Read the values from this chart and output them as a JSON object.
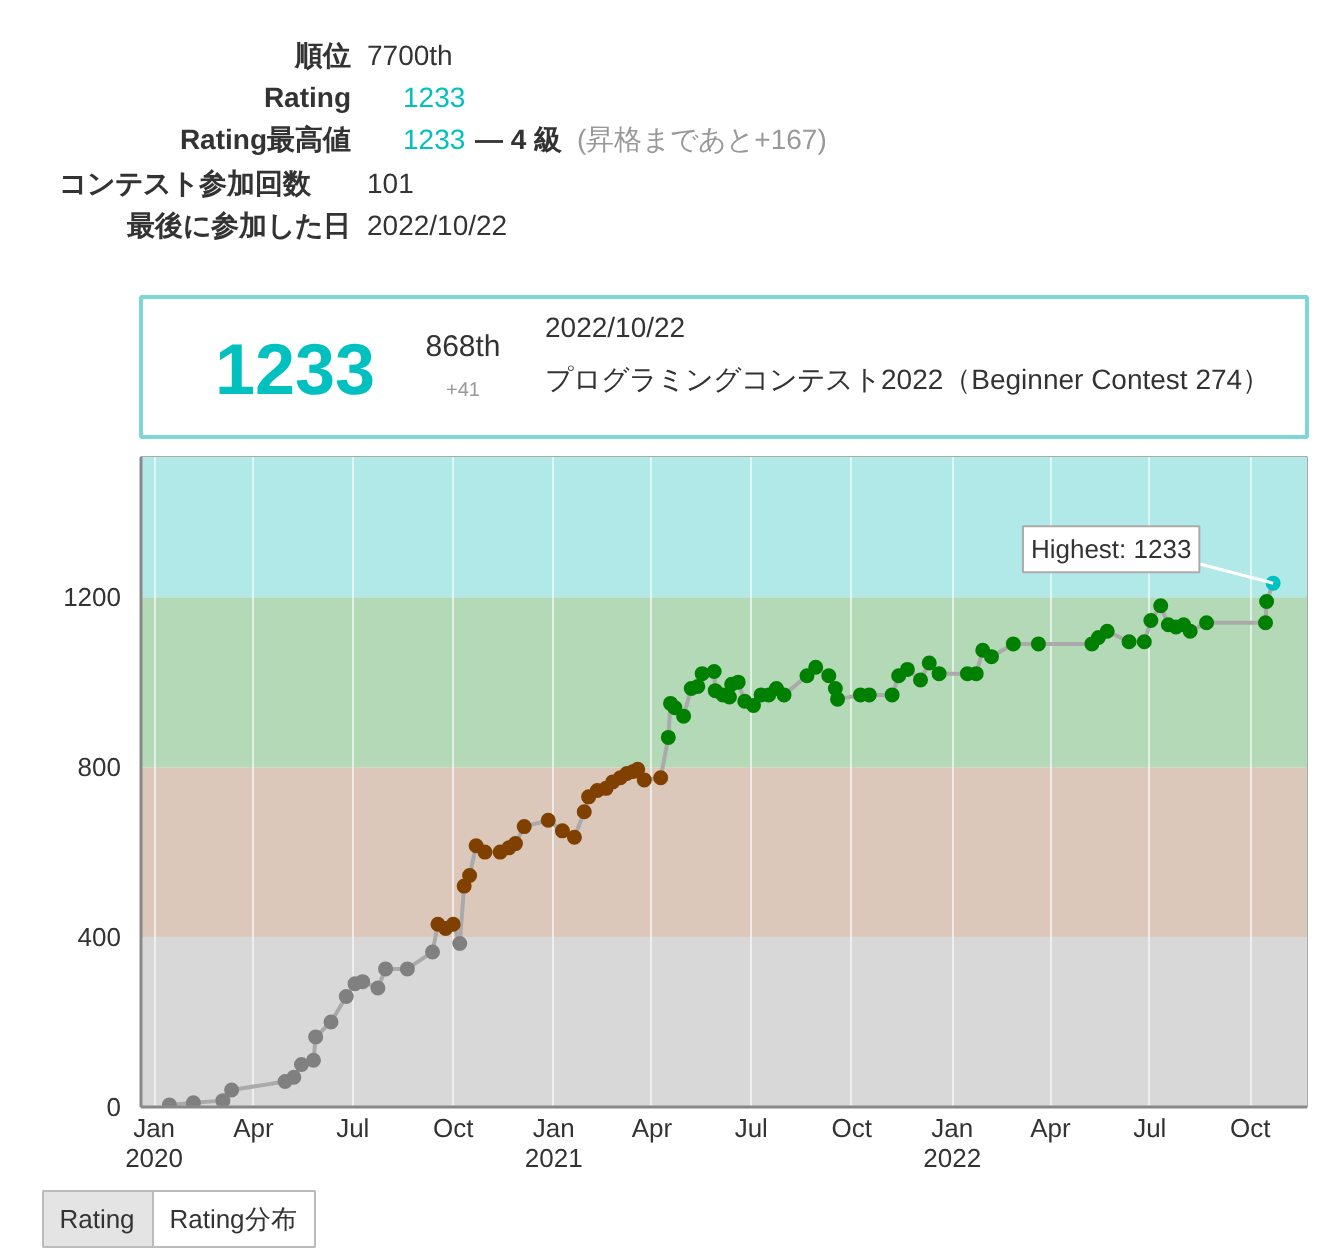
{
  "chart_data": {
    "type": "line",
    "annotations": [
      "順位",
      "7700th",
      "Rating",
      "1233",
      "Rating最高値",
      "1233",
      "— 4 級",
      "(昇格まであと+167)",
      "コンテスト参加回数",
      "101",
      "最後に参加した日",
      "2022/10/22",
      "1233",
      "868th",
      "+41",
      "2022/10/22",
      "プログラミングコンテスト2022（Beginner Contest 274）",
      "Rating",
      "Rating分布",
      {
        "text": "Highest: 1233",
        "x": "2022-10-22",
        "y": 1233
      }
    ],
    "x": [
      "2020-01-15",
      "2020-02-06",
      "2020-03-04",
      "2020-03-12",
      "2020-04-30",
      "2020-05-08",
      "2020-05-15",
      "2020-05-26",
      "2020-05-28",
      "2020-06-11",
      "2020-06-25",
      "2020-07-03",
      "2020-07-10",
      "2020-07-24",
      "2020-07-31",
      "2020-08-20",
      "2020-09-12",
      "2020-09-17",
      "2020-09-24",
      "2020-10-01",
      "2020-10-07",
      "2020-10-11",
      "2020-10-16",
      "2020-10-22",
      "2020-10-30",
      "2020-11-13",
      "2020-11-21",
      "2020-11-27",
      "2020-12-05",
      "2020-12-27",
      "2021-01-09",
      "2021-01-20",
      "2021-01-29",
      "2021-02-02",
      "2021-02-10",
      "2021-02-18",
      "2021-02-24",
      "2021-03-03",
      "2021-03-09",
      "2021-03-15",
      "2021-03-19",
      "2021-03-25",
      "2021-04-09",
      "2021-04-16",
      "2021-04-18",
      "2021-04-22",
      "2021-04-30",
      "2021-05-07",
      "2021-05-13",
      "2021-05-17",
      "2021-05-28",
      "2021-05-29",
      "2021-06-05",
      "2021-06-11",
      "2021-06-13",
      "2021-06-19",
      "2021-06-25",
      "2021-07-03",
      "2021-07-10",
      "2021-07-17",
      "2021-07-24",
      "2021-07-31",
      "2021-08-21",
      "2021-08-29",
      "2021-09-10",
      "2021-09-16",
      "2021-09-18",
      "2021-10-09",
      "2021-10-17",
      "2021-11-07",
      "2021-11-13",
      "2021-11-21",
      "2021-12-03",
      "2021-12-11",
      "2021-12-20",
      "2022-01-15",
      "2022-01-23",
      "2022-01-29",
      "2022-02-06",
      "2022-02-26",
      "2022-03-21",
      "2022-05-09",
      "2022-05-15",
      "2022-05-23",
      "2022-06-12",
      "2022-06-26",
      "2022-07-02",
      "2022-07-11",
      "2022-07-18",
      "2022-07-25",
      "2022-08-01",
      "2022-08-07",
      "2022-08-22",
      "2022-10-15",
      "2022-10-16",
      "2022-10-22"
    ],
    "series": [
      {
        "color": "#aaaaaa",
        "values": [
          5,
          10,
          15,
          40,
          60,
          70,
          100,
          110,
          165,
          200,
          260,
          290,
          295,
          280,
          325,
          325,
          365,
          430,
          420,
          430,
          385,
          520,
          545,
          615,
          600,
          600,
          610,
          620,
          660,
          675,
          650,
          635,
          695,
          730,
          745,
          750,
          765,
          775,
          785,
          790,
          795,
          770,
          775,
          870,
          950,
          940,
          920,
          985,
          990,
          1020,
          1025,
          980,
          970,
          965,
          995,
          1000,
          955,
          945,
          970,
          970,
          985,
          970,
          1015,
          1035,
          1015,
          985,
          960,
          970,
          970,
          970,
          1015,
          1030,
          1005,
          1045,
          1020,
          1020,
          1020,
          1075,
          1060,
          1090,
          1090,
          1090,
          1105,
          1120,
          1095,
          1095,
          1145,
          1180,
          1135,
          1130,
          1135,
          1120,
          1140,
          1140,
          1190,
          1233
        ],
        "colors": [
          "#808080",
          "#808080",
          "#808080",
          "#808080",
          "#808080",
          "#808080",
          "#808080",
          "#808080",
          "#808080",
          "#808080",
          "#808080",
          "#808080",
          "#808080",
          "#808080",
          "#808080",
          "#808080",
          "#808080",
          "#804000",
          "#804000",
          "#804000",
          "#808080",
          "#804000",
          "#804000",
          "#804000",
          "#804000",
          "#804000",
          "#804000",
          "#804000",
          "#804000",
          "#804000",
          "#804000",
          "#804000",
          "#804000",
          "#804000",
          "#804000",
          "#804000",
          "#804000",
          "#804000",
          "#804000",
          "#804000",
          "#804000",
          "#804000",
          "#804000",
          "#008000",
          "#008000",
          "#008000",
          "#008000",
          "#008000",
          "#008000",
          "#008000",
          "#008000",
          "#008000",
          "#008000",
          "#008000",
          "#008000",
          "#008000",
          "#008000",
          "#008000",
          "#008000",
          "#008000",
          "#008000",
          "#008000",
          "#008000",
          "#008000",
          "#008000",
          "#008000",
          "#008000",
          "#008000",
          "#008000",
          "#008000",
          "#008000",
          "#008000",
          "#008000",
          "#008000",
          "#008000",
          "#008000",
          "#008000",
          "#008000",
          "#008000",
          "#008000",
          "#008000",
          "#008000",
          "#008000",
          "#008000",
          "#008000",
          "#008000",
          "#008000",
          "#008000",
          "#008000",
          "#008000",
          "#008000",
          "#008000",
          "#008000",
          "#008000",
          "#008000",
          "#00c0c0"
        ]
      }
    ],
    "xlim": [
      "2019-12-20",
      "2022-11-22"
    ],
    "ylim": [
      0,
      1530
    ],
    "xticks": [
      {
        "value": "2020-01-01",
        "label": "Jan\n2020"
      },
      {
        "value": "2020-04-01",
        "label": "Apr"
      },
      {
        "value": "2020-07-01",
        "label": "Jul"
      },
      {
        "value": "2020-10-01",
        "label": "Oct"
      },
      {
        "value": "2021-01-01",
        "label": "Jan\n2021"
      },
      {
        "value": "2021-04-01",
        "label": "Apr"
      },
      {
        "value": "2021-07-01",
        "label": "Jul"
      },
      {
        "value": "2021-10-01",
        "label": "Oct"
      },
      {
        "value": "2022-01-01",
        "label": "Jan\n2022"
      },
      {
        "value": "2022-04-01",
        "label": "Apr"
      },
      {
        "value": "2022-07-01",
        "label": "Jul"
      },
      {
        "value": "2022-10-01",
        "label": "Oct"
      }
    ],
    "yticks": [
      0,
      400,
      800,
      1200
    ],
    "bands": [
      {
        "axis": "y",
        "from": 0,
        "to": 400,
        "color": "#d8d8d8"
      },
      {
        "axis": "y",
        "from": 400,
        "to": 800,
        "color": "#dbc8bb"
      },
      {
        "axis": "y",
        "from": 800,
        "to": 1200,
        "color": "#b4d9b7"
      },
      {
        "axis": "y",
        "from": 1200,
        "to": 1530,
        "color": "#b1e9e9"
      }
    ],
    "grid": "x",
    "marker": "circle",
    "line_style": "solid"
  }
}
